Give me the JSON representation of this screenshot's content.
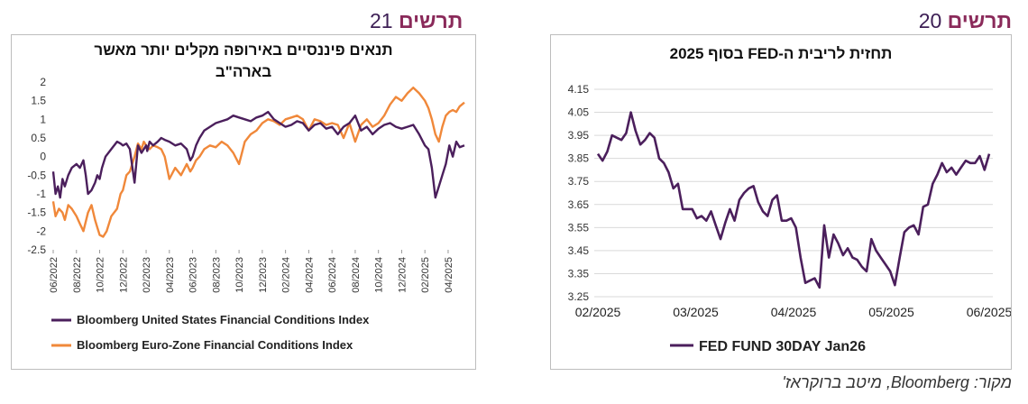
{
  "figures": {
    "right": {
      "word": "תרשים",
      "num": "20"
    },
    "left": {
      "word": "תרשים",
      "num": "21"
    }
  },
  "source": "מקור: Bloomberg, מיטב ברוקראז'",
  "chart_data": [
    {
      "type": "line",
      "title": "תנאים פיננסיים באירופה מקלים יותר מאשר בארה\"ב",
      "title_line1": "תנאים פיננסיים באירופה מקלים יותר מאשר",
      "title_line2": "בארה\"ב",
      "ylim": [
        -2.5,
        2
      ],
      "yticks": [
        "2",
        "1.5",
        "1",
        "0.5",
        "0",
        "-0.5",
        "-1",
        "-1.5",
        "-2",
        "-2.5"
      ],
      "xticks": [
        "06/2022",
        "08/2022",
        "10/2022",
        "12/2022",
        "02/2023",
        "04/2023",
        "06/2023",
        "08/2023",
        "10/2023",
        "12/2023",
        "02/2024",
        "04/2024",
        "06/2024",
        "08/2024",
        "10/2024",
        "12/2024",
        "02/2025",
        "04/2025"
      ],
      "legend_position": "bottom",
      "colors": {
        "us": "#4b1f5c",
        "eu": "#f0883a"
      },
      "series": [
        {
          "name": "Bloomberg United States Financial Conditions Index",
          "x": [
            0,
            0.2,
            0.4,
            0.6,
            0.8,
            1.0,
            1.3,
            1.6,
            2.0,
            2.3,
            2.6,
            2.8,
            3.0,
            3.3,
            3.6,
            3.8,
            4.0,
            4.2,
            4.5,
            5.0,
            5.5,
            5.8,
            6.0,
            6.3,
            6.6,
            7.0,
            7.3,
            7.6,
            7.8,
            8.0,
            8.1,
            8.3,
            8.6,
            9.0,
            9.3,
            9.6,
            10.0,
            10.5,
            11.0,
            11.5,
            11.8,
            12.0,
            12.3,
            12.6,
            13.0,
            13.5,
            14.0,
            14.5,
            15.0,
            15.5,
            16.0,
            16.5,
            17.0,
            17.5,
            18.0,
            18.5,
            19.0,
            19.5,
            20.0,
            20.5,
            21.0,
            21.5,
            22.0,
            22.5,
            23.0,
            23.5,
            24.0,
            24.5,
            25.0,
            25.5,
            26.0,
            26.5,
            27.0,
            27.5,
            28.0,
            28.5,
            29.0,
            29.5,
            30.0,
            30.5,
            31.0,
            31.5,
            32.0,
            32.3,
            32.6,
            32.9,
            33.2,
            33.5,
            33.8,
            34.1,
            34.4,
            34.7,
            35.0,
            35.4
          ],
          "y": [
            -0.4,
            -1.0,
            -0.8,
            -1.1,
            -0.6,
            -0.8,
            -0.5,
            -0.3,
            -0.2,
            -0.3,
            -0.1,
            -0.5,
            -1.0,
            -0.9,
            -0.7,
            -0.5,
            -0.6,
            -0.3,
            0.0,
            0.2,
            0.4,
            0.35,
            0.3,
            0.35,
            0.2,
            -0.7,
            0.3,
            0.1,
            0.2,
            0.3,
            0.15,
            0.4,
            0.3,
            0.4,
            0.5,
            0.45,
            0.4,
            0.3,
            0.35,
            0.2,
            -0.1,
            0.0,
            0.3,
            0.5,
            0.7,
            0.8,
            0.9,
            0.95,
            1.0,
            1.1,
            1.05,
            1.0,
            0.95,
            1.05,
            1.1,
            1.2,
            1.0,
            0.9,
            0.8,
            0.85,
            0.95,
            0.9,
            0.7,
            0.85,
            0.9,
            0.75,
            0.8,
            0.6,
            0.8,
            0.9,
            1.1,
            0.7,
            0.8,
            0.6,
            0.75,
            0.85,
            0.9,
            0.8,
            0.75,
            0.8,
            0.85,
            0.6,
            0.3,
            0.2,
            -0.3,
            -1.1,
            -0.8,
            -0.5,
            -0.2,
            0.3,
            0.0,
            0.4,
            0.25,
            0.3
          ]
        },
        {
          "name": "Bloomberg Euro-Zone Financial Conditions Index",
          "x": [
            0,
            0.2,
            0.5,
            0.8,
            1.0,
            1.3,
            1.6,
            2.0,
            2.3,
            2.6,
            3.0,
            3.3,
            3.6,
            3.8,
            4.0,
            4.3,
            4.6,
            5.0,
            5.5,
            5.8,
            6.0,
            6.3,
            6.6,
            7.0,
            7.3,
            7.6,
            7.8,
            8.0,
            8.3,
            8.6,
            9.0,
            9.3,
            9.6,
            10.0,
            10.5,
            11.0,
            11.5,
            11.8,
            12.0,
            12.3,
            12.6,
            13.0,
            13.5,
            14.0,
            14.5,
            15.0,
            15.5,
            16.0,
            16.5,
            17.0,
            17.5,
            18.0,
            18.5,
            19.0,
            19.5,
            20.0,
            20.5,
            21.0,
            21.5,
            22.0,
            22.5,
            23.0,
            23.5,
            24.0,
            24.5,
            25.0,
            25.5,
            26.0,
            26.5,
            27.0,
            27.5,
            28.0,
            28.5,
            29.0,
            29.5,
            30.0,
            30.5,
            31.0,
            31.5,
            32.0,
            32.3,
            32.6,
            32.9,
            33.2,
            33.5,
            33.8,
            34.1,
            34.4,
            34.7,
            35.0,
            35.4
          ],
          "y": [
            -1.2,
            -1.6,
            -1.4,
            -1.5,
            -1.7,
            -1.3,
            -1.4,
            -1.6,
            -1.8,
            -2.0,
            -1.5,
            -1.3,
            -1.7,
            -1.9,
            -2.1,
            -2.15,
            -2.0,
            -1.6,
            -1.4,
            -1.0,
            -0.9,
            -0.5,
            -0.4,
            0.0,
            0.35,
            0.2,
            0.4,
            0.3,
            0.2,
            0.3,
            0.25,
            0.2,
            0.0,
            -0.6,
            -0.3,
            -0.5,
            -0.2,
            -0.4,
            -0.3,
            -0.1,
            0.0,
            0.2,
            0.3,
            0.25,
            0.4,
            0.3,
            0.1,
            -0.2,
            0.4,
            0.6,
            0.7,
            0.9,
            1.0,
            0.95,
            0.85,
            1.0,
            1.05,
            1.1,
            1.0,
            0.7,
            1.0,
            0.95,
            0.85,
            0.9,
            0.85,
            0.5,
            0.9,
            0.4,
            0.85,
            1.0,
            0.8,
            0.9,
            1.1,
            1.4,
            1.6,
            1.5,
            1.7,
            1.85,
            1.7,
            1.5,
            1.3,
            1.0,
            0.6,
            0.4,
            0.8,
            1.1,
            1.2,
            1.25,
            1.2,
            1.35,
            1.45
          ]
        }
      ]
    },
    {
      "type": "line",
      "title": "תחזית לריבית ה-FED בסוף 2025",
      "ylim": [
        3.25,
        4.15
      ],
      "yticks": [
        "4.15",
        "4.05",
        "3.95",
        "3.85",
        "3.75",
        "3.65",
        "3.55",
        "3.45",
        "3.35",
        "3.25"
      ],
      "xticks": [
        "02/2025",
        "03/2025",
        "04/2025",
        "05/2025",
        "06/2025"
      ],
      "legend_position": "bottom",
      "colors": {
        "line": "#4b1f5c"
      },
      "series": [
        {
          "name": "FED FUND 30DAY Jan26",
          "x": [
            0.0,
            0.05,
            0.1,
            0.15,
            0.2,
            0.25,
            0.3,
            0.35,
            0.4,
            0.45,
            0.5,
            0.55,
            0.6,
            0.65,
            0.7,
            0.75,
            0.8,
            0.85,
            0.9,
            0.95,
            1.0,
            1.05,
            1.1,
            1.15,
            1.2,
            1.25,
            1.3,
            1.35,
            1.4,
            1.45,
            1.5,
            1.55,
            1.6,
            1.65,
            1.7,
            1.75,
            1.8,
            1.85,
            1.9,
            1.95,
            2.0,
            2.05,
            2.1,
            2.15,
            2.2,
            2.25,
            2.3,
            2.35,
            2.4,
            2.45,
            2.5,
            2.55,
            2.6,
            2.65,
            2.7,
            2.75,
            2.8,
            2.85,
            2.9,
            2.95,
            3.0,
            3.05,
            3.1,
            3.15,
            3.2,
            3.25,
            3.3,
            3.35,
            3.4,
            3.45,
            3.5,
            3.55,
            3.6,
            3.65,
            3.7,
            3.75,
            3.8,
            3.85,
            3.9,
            3.95,
            4.0,
            4.05,
            4.1,
            4.15
          ],
          "y": [
            3.87,
            3.84,
            3.88,
            3.95,
            3.94,
            3.93,
            3.96,
            4.05,
            3.97,
            3.91,
            3.93,
            3.96,
            3.94,
            3.85,
            3.83,
            3.79,
            3.72,
            3.74,
            3.63,
            3.63,
            3.63,
            3.59,
            3.6,
            3.58,
            3.62,
            3.56,
            3.5,
            3.57,
            3.63,
            3.58,
            3.67,
            3.7,
            3.72,
            3.73,
            3.66,
            3.62,
            3.6,
            3.67,
            3.69,
            3.58,
            3.58,
            3.59,
            3.55,
            3.42,
            3.31,
            3.32,
            3.33,
            3.29,
            3.56,
            3.42,
            3.52,
            3.48,
            3.43,
            3.46,
            3.42,
            3.41,
            3.38,
            3.36,
            3.5,
            3.45,
            3.42,
            3.39,
            3.36,
            3.3,
            3.42,
            3.53,
            3.55,
            3.56,
            3.52,
            3.64,
            3.65,
            3.74,
            3.78,
            3.83,
            3.79,
            3.81,
            3.78,
            3.81,
            3.84,
            3.83,
            3.83,
            3.86,
            3.8,
            3.87
          ]
        }
      ]
    }
  ]
}
